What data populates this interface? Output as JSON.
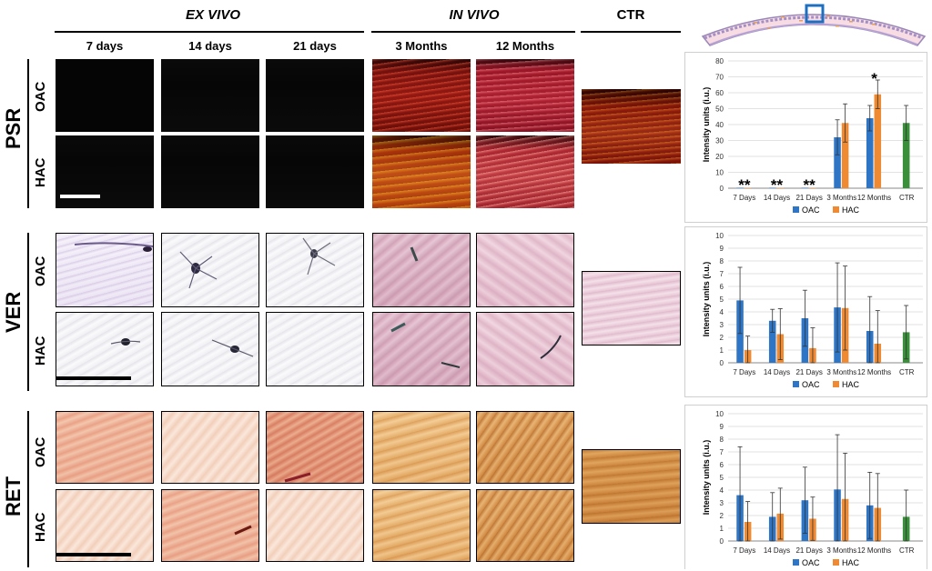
{
  "figure": {
    "groups": {
      "ex_vivo": "EX VIVO",
      "in_vivo": "IN VIVO",
      "ctr": "CTR"
    },
    "columns": {
      "ex_vivo": [
        "7 days",
        "14 days",
        "21 days"
      ],
      "in_vivo": [
        "3 Months",
        "12 Months"
      ]
    },
    "rows": [
      {
        "label": "PSR",
        "sub": [
          "OAC",
          "HAC"
        ]
      },
      {
        "label": "VER",
        "sub": [
          "OAC",
          "HAC"
        ]
      },
      {
        "label": "RET",
        "sub": [
          "OAC",
          "HAC"
        ]
      }
    ],
    "colors": {
      "oac": "#2e75c6",
      "hac": "#ef8a33",
      "ctr": "#3a8f3a",
      "icon_box": "#1f6fc0"
    }
  },
  "chart_data": [
    {
      "type": "bar",
      "categories": [
        "7 Days",
        "14 Days",
        "21 Days",
        "3 Months",
        "12 Months",
        "CTR"
      ],
      "series": [
        {
          "name": "OAC",
          "values": [
            0.3,
            0.3,
            0.3,
            32,
            44,
            null
          ],
          "errors": [
            0,
            0,
            0,
            11,
            8,
            null
          ]
        },
        {
          "name": "HAC",
          "values": [
            0.3,
            0.3,
            0.3,
            41,
            59,
            null
          ],
          "errors": [
            0,
            0,
            0,
            12,
            9,
            null
          ]
        },
        {
          "name": "",
          "values": [
            null,
            null,
            null,
            null,
            null,
            41
          ],
          "errors": [
            null,
            null,
            null,
            null,
            null,
            11
          ]
        }
      ],
      "annotations": [
        {
          "category": "7 Days",
          "text": "**"
        },
        {
          "category": "14 Days",
          "text": "**"
        },
        {
          "category": "21 Days",
          "text": "**"
        },
        {
          "category": "12 Months",
          "text": "*"
        }
      ],
      "ylabel": "Intensity units (i.u.)",
      "ylim": [
        0,
        80
      ],
      "yticks": [
        "0",
        "10",
        "20",
        "30",
        "40",
        "50",
        "60",
        "70",
        "80"
      ],
      "legend": [
        "OAC",
        "HAC"
      ],
      "legend_position": "bottom"
    },
    {
      "type": "bar",
      "categories": [
        "7 Days",
        "14 Days",
        "21 Days",
        "3 Months",
        "12 Months",
        "CTR"
      ],
      "series": [
        {
          "name": "OAC",
          "values": [
            4.9,
            3.3,
            3.5,
            4.35,
            2.5,
            null
          ],
          "errors": [
            2.6,
            0.9,
            2.2,
            3.5,
            2.7,
            null
          ]
        },
        {
          "name": "HAC",
          "values": [
            1.0,
            2.25,
            1.15,
            4.3,
            1.5,
            null
          ],
          "errors": [
            1.1,
            2.0,
            1.6,
            3.3,
            2.6,
            null
          ]
        },
        {
          "name": "",
          "values": [
            null,
            null,
            null,
            null,
            null,
            2.4
          ],
          "errors": [
            null,
            null,
            null,
            null,
            null,
            2.1
          ]
        }
      ],
      "annotations": [],
      "ylabel": "Intensity units (i.u.)",
      "ylim": [
        0,
        10
      ],
      "yticks": [
        "0",
        "1",
        "2",
        "3",
        "4",
        "5",
        "6",
        "7",
        "8",
        "9",
        "10"
      ],
      "legend": [
        "OAC",
        "HAC"
      ],
      "legend_position": "bottom"
    },
    {
      "type": "bar",
      "categories": [
        "7 Days",
        "14 Days",
        "21 Days",
        "3 Months",
        "12 Months",
        "CTR"
      ],
      "series": [
        {
          "name": "OAC",
          "values": [
            3.6,
            1.9,
            3.2,
            4.05,
            2.8,
            null
          ],
          "errors": [
            3.8,
            1.9,
            2.6,
            4.3,
            2.6,
            null
          ]
        },
        {
          "name": "HAC",
          "values": [
            1.5,
            2.15,
            1.75,
            3.3,
            2.6,
            null
          ],
          "errors": [
            1.6,
            2.0,
            1.7,
            3.6,
            2.7,
            null
          ]
        },
        {
          "name": "",
          "values": [
            null,
            null,
            null,
            null,
            null,
            1.9
          ],
          "errors": [
            null,
            null,
            null,
            null,
            null,
            2.1
          ]
        }
      ],
      "annotations": [],
      "ylabel": "Intensity units (i.u.)",
      "ylim": [
        0,
        10
      ],
      "yticks": [
        "0",
        "1",
        "2",
        "3",
        "4",
        "5",
        "6",
        "7",
        "8",
        "9",
        "10"
      ],
      "legend": [
        "OAC",
        "HAC"
      ],
      "legend_position": "bottom"
    }
  ]
}
